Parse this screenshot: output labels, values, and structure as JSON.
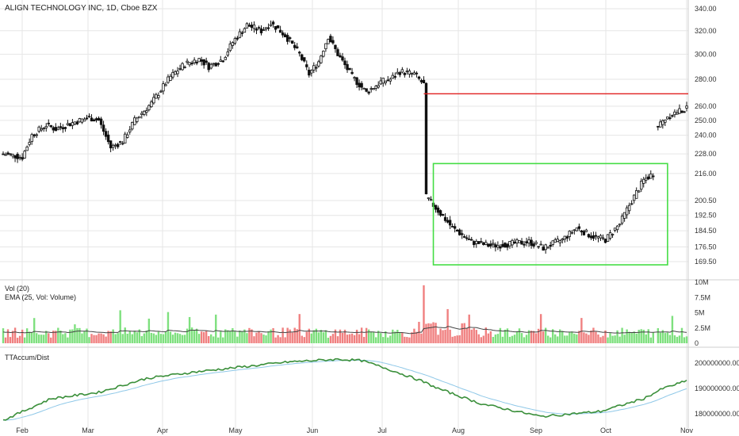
{
  "header": {
    "symbol": "ALIGN TECHNOLOGY INC, 1D, Cboe BZX"
  },
  "volume_pane": {
    "line1": "Vol (20)",
    "line2": "EMA (25, Vol: Volume)"
  },
  "accum_pane": {
    "label": "TTAccum/Dist"
  },
  "x_axis": {
    "labels": [
      "Feb",
      "Mar",
      "Apr",
      "May",
      "Jun",
      "Jul",
      "Aug",
      "Sep",
      "Oct",
      "Nov"
    ]
  },
  "price_axis": {
    "ticks": [
      "340.00",
      "320.00",
      "300.00",
      "280.00",
      "260.00",
      "250.00",
      "240.00",
      "228.00",
      "216.00",
      "200.50",
      "192.50",
      "184.50",
      "176.50",
      "169.50"
    ]
  },
  "volume_axis": {
    "ticks": [
      "10M",
      "7.5M",
      "5M",
      "2.5M",
      "0"
    ]
  },
  "accum_axis": {
    "ticks": [
      "200000000.00",
      "190000000.00",
      "180000000.00"
    ]
  },
  "colors": {
    "up_volume": "#7ee07e",
    "down_volume": "#f08080",
    "accum_line": "#3a8f3a",
    "accum_ema": "#8fc8e8",
    "annotation_line": "#e02020",
    "annotation_box": "#44dd44",
    "grid": "#e6e6e6"
  },
  "annotations": {
    "resistance_level": 269,
    "base_box": {
      "price_high": 222,
      "price_low": 168
    }
  },
  "chart_data": [
    {
      "type": "candlestick",
      "title": "ALIGN TECHNOLOGY INC, 1D, Cboe BZX",
      "price_scale": "log",
      "ylim": [
        166,
        345
      ],
      "x": [
        "Feb",
        "Mar",
        "Apr",
        "May",
        "Jun",
        "Jul",
        "Aug",
        "Sep",
        "Oct",
        "Nov"
      ],
      "close_path": [
        [
          0,
          228
        ],
        [
          8,
          226
        ],
        [
          12,
          240
        ],
        [
          18,
          247
        ],
        [
          22,
          244
        ],
        [
          30,
          249
        ],
        [
          36,
          252
        ],
        [
          40,
          250
        ],
        [
          45,
          232
        ],
        [
          50,
          236
        ],
        [
          55,
          250
        ],
        [
          62,
          262
        ],
        [
          70,
          282
        ],
        [
          76,
          292
        ],
        [
          82,
          296
        ],
        [
          86,
          290
        ],
        [
          92,
          296
        ],
        [
          96,
          310
        ],
        [
          102,
          325
        ],
        [
          108,
          320
        ],
        [
          112,
          327
        ],
        [
          118,
          316
        ],
        [
          124,
          300
        ],
        [
          128,
          284
        ],
        [
          132,
          294
        ],
        [
          136,
          315
        ],
        [
          140,
          300
        ],
        [
          146,
          282
        ],
        [
          152,
          270
        ],
        [
          158,
          278
        ],
        [
          162,
          280
        ],
        [
          166,
          286
        ],
        [
          172,
          284
        ],
        [
          176,
          276
        ]
      ],
      "gap_close_path": [
        [
          176,
          204
        ],
        [
          180,
          198
        ],
        [
          184,
          192
        ],
        [
          188,
          186
        ],
        [
          196,
          179
        ],
        [
          204,
          177
        ],
        [
          212,
          178
        ],
        [
          220,
          179
        ],
        [
          226,
          176
        ],
        [
          234,
          180
        ],
        [
          240,
          186
        ],
        [
          246,
          182
        ],
        [
          252,
          180
        ],
        [
          258,
          188
        ],
        [
          262,
          198
        ],
        [
          268,
          212
        ],
        [
          272,
          216
        ]
      ],
      "recovery_path": [
        [
          274,
          246
        ],
        [
          278,
          253
        ],
        [
          282,
          256
        ],
        [
          286,
          258
        ]
      ],
      "series": [
        {
          "name": "Vol (20)",
          "type": "bar"
        },
        {
          "name": "EMA (25, Vol: Volume)",
          "type": "line"
        },
        {
          "name": "TTAccum/Dist",
          "type": "line"
        }
      ]
    },
    {
      "type": "bar",
      "title": "Vol (20)",
      "ylim": [
        0,
        10000000
      ],
      "values_note_peak": 9500000,
      "ema_level": 1800000
    },
    {
      "type": "line",
      "title": "TTAccum/Dist",
      "ylim": [
        176000000,
        205000000
      ],
      "points": [
        [
          0,
          177500000
        ],
        [
          20,
          186000000
        ],
        [
          40,
          188500000
        ],
        [
          60,
          194000000
        ],
        [
          80,
          196500000
        ],
        [
          100,
          198500000
        ],
        [
          120,
          200500000
        ],
        [
          140,
          201500000
        ],
        [
          150,
          201000000
        ],
        [
          160,
          198000000
        ],
        [
          175,
          193000000
        ],
        [
          182,
          190000000
        ],
        [
          200,
          184000000
        ],
        [
          225,
          179000000
        ],
        [
          250,
          181000000
        ],
        [
          268,
          186000000
        ],
        [
          276,
          190000000
        ],
        [
          286,
          193000000
        ]
      ]
    }
  ]
}
